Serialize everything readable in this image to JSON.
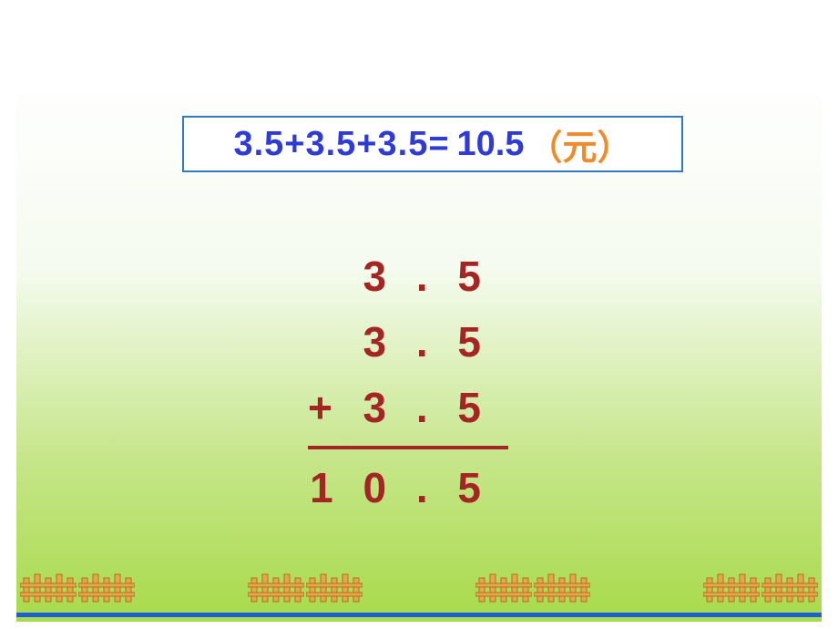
{
  "equation": {
    "left": "3.5+3.5+3.5=",
    "result": "10.5",
    "unit": "（元）",
    "box_border_color": "#2e7bc0",
    "text_color": "#2e3bd6",
    "unit_color": "#f08b2a",
    "fontsize": 38
  },
  "column_addition": {
    "rows": [
      "3 . 5",
      "3 . 5",
      "3 . 5"
    ],
    "operator": "+",
    "result": "1 0 . 5",
    "color": "#a52424",
    "fontsize": 46
  },
  "background": {
    "gradient_top": "#ffffff",
    "gradient_mid": "#c6e68a",
    "gradient_bottom": "#a8da4a"
  },
  "fence": {
    "color_fill": "#e8a64a",
    "color_stroke": "#b07020",
    "groups": 4,
    "segments_per_group": 2
  }
}
